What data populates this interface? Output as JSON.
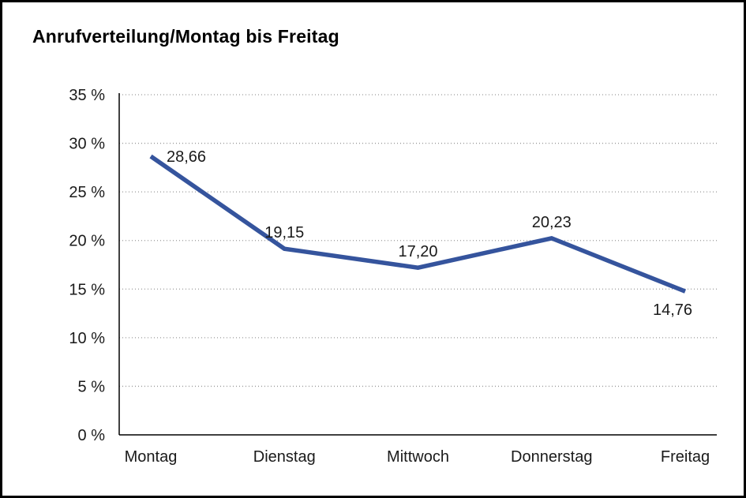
{
  "page": {
    "background": "#ffffff",
    "border_color": "#000000"
  },
  "chart_data": {
    "type": "line",
    "title": "Anrufverteilung/Montag bis Freitag",
    "categories": [
      "Montag",
      "Dienstag",
      "Mittwoch",
      "Donnerstag",
      "Freitag"
    ],
    "values": [
      28.66,
      19.15,
      17.2,
      20.23,
      14.76
    ],
    "value_labels": [
      "28,66",
      "19,15",
      "17,20",
      "20,23",
      "14,76"
    ],
    "xlabel": "",
    "ylabel": "",
    "ylim": [
      0,
      35
    ],
    "ytick_values": [
      0,
      5,
      10,
      15,
      20,
      25,
      30,
      35
    ],
    "ytick_labels": [
      "0 %",
      "5 %",
      "10 %",
      "15 %",
      "20 %",
      "25 %",
      "30 %",
      "35 %"
    ],
    "grid": "horizontal-dotted",
    "legend": "none",
    "series_color": "#35549d",
    "label_placement": [
      "right",
      "above",
      "above",
      "above",
      "below"
    ]
  }
}
